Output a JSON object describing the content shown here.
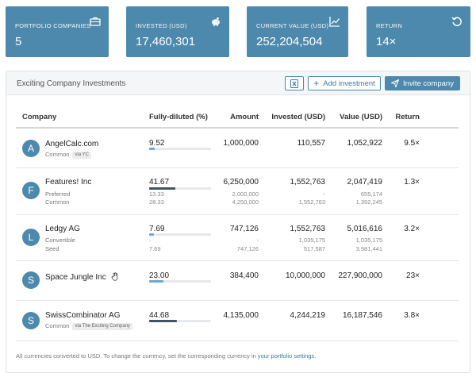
{
  "kpis": [
    {
      "label": "PORTFOLIO COMPANIES",
      "value": "5",
      "icon": "briefcase-icon"
    },
    {
      "label": "INVESTED (USD)",
      "value": "17,460,301",
      "icon": "piggy-bank-icon"
    },
    {
      "label": "CURRENT VALUE (USD)",
      "value": "252,204,504",
      "icon": "line-chart-icon"
    },
    {
      "label": "RETURN",
      "value": "14×",
      "icon": "undo-icon"
    }
  ],
  "panel": {
    "title": "Exciting Company Investments",
    "add_label": "Add investment",
    "invite_label": "Invite company"
  },
  "table": {
    "headers": {
      "company": "Company",
      "fully_diluted": "Fully-diluted (%)",
      "amount": "Amount",
      "invested": "Invested (USD)",
      "value": "Value (USD)",
      "return": "Return"
    },
    "rows": [
      {
        "initial": "A",
        "name": "AngelCalc.com",
        "sub1": "Common",
        "via": "via YC",
        "sub2": "",
        "pct": "9.52",
        "pct_fraction": 0.0952,
        "amount": "1,000,000",
        "invested": "110,557",
        "value": "1,052,922",
        "return": "9.5×",
        "breakdown": null
      },
      {
        "initial": "F",
        "name": "Features! Inc",
        "sub1": "Preferred",
        "via": "",
        "sub2": "Common",
        "pct": "41.67",
        "pct_fraction": 0.4167,
        "amount": "6,250,000",
        "invested": "1,552,763",
        "value": "2,047,419",
        "return": "1.3×",
        "breakdown": {
          "pct": [
            "13.33",
            "28.33"
          ],
          "amount": [
            "2,000,000",
            "4,250,000"
          ],
          "invested": [
            "-",
            "1,552,763"
          ],
          "value": [
            "655,174",
            "1,392,245"
          ]
        }
      },
      {
        "initial": "L",
        "name": "Ledgy AG",
        "sub1": "Convertible",
        "via": "",
        "sub2": "Seed",
        "pct": "7.69",
        "pct_fraction": 0.0769,
        "amount": "747,126",
        "invested": "1,552,763",
        "value": "5,016,616",
        "return": "3.2×",
        "breakdown": {
          "pct": [
            "-",
            "7.69"
          ],
          "amount": [
            "-",
            "747,126"
          ],
          "invested": [
            "1,035,175",
            "517,587"
          ],
          "value": [
            "1,035,175",
            "3,981,441"
          ]
        }
      },
      {
        "initial": "S",
        "name": "Space Jungle Inc",
        "sub1": "",
        "via": "",
        "sub2": "",
        "pct": "23.00",
        "pct_fraction": 0.23,
        "amount": "384,400",
        "invested": "10,000,000",
        "value": "227,900,000",
        "return": "23×",
        "breakdown": null
      },
      {
        "initial": "S",
        "name": "SwissCombinator AG",
        "sub1": "Common",
        "via": "via The Exciting Company",
        "sub2": "",
        "pct": "44.68",
        "pct_fraction": 0.4468,
        "amount": "4,135,000",
        "invested": "4,244,219",
        "value": "16,187,546",
        "return": "3.8×",
        "breakdown": null
      }
    ]
  },
  "footer": {
    "text": "All currencies converted to USD. To change the currency, set the corresponding currency in ",
    "link": "your portfolio settings",
    "end": "."
  },
  "colors": {
    "accent": "#4c89ad",
    "bar_light": "#6fa8c8",
    "bar_dark": "#3f5566"
  }
}
